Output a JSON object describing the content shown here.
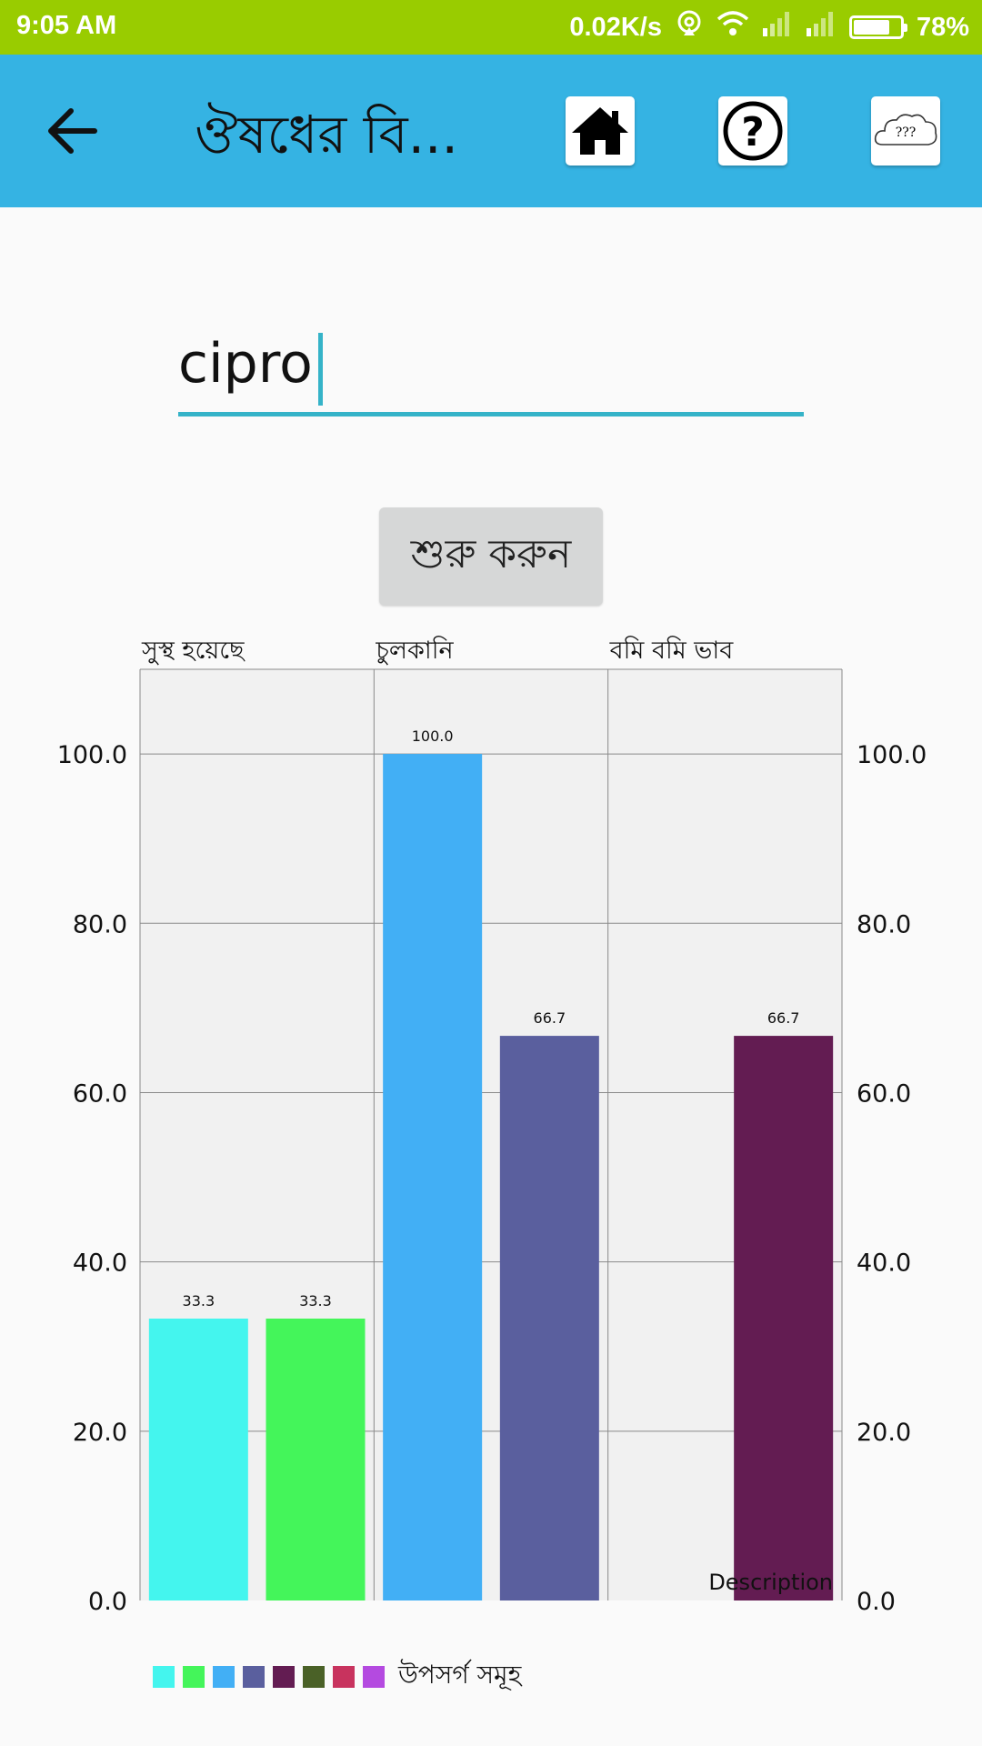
{
  "status_bar": {
    "time": "9:05 AM",
    "speed": "0.02K/s",
    "battery": "78%",
    "battery_level": 0.78
  },
  "app_bar": {
    "title": "ঔষধের বি...",
    "back_icon": "arrow-left-icon",
    "home_icon": "home-icon",
    "help_icon": "question-circle-icon",
    "cloud_icon": "cloud-icon",
    "cloud_text": "???"
  },
  "search": {
    "value": "cipro"
  },
  "start_button": {
    "label": "শুরু করুন"
  },
  "chart_data": {
    "type": "bar",
    "categories": [
      "সুস্থ হয়েছে",
      "চুলকানি",
      "বমি বমি ভাব"
    ],
    "bars": [
      {
        "category": 0,
        "slot": 0,
        "value": 33.3,
        "label": "33.3",
        "color": "#44f5ee"
      },
      {
        "category": 0,
        "slot": 1,
        "value": 33.3,
        "label": "33.3",
        "color": "#44f55a"
      },
      {
        "category": 1,
        "slot": 0,
        "value": 100.0,
        "label": "100.0",
        "color": "#42aff5"
      },
      {
        "category": 1,
        "slot": 1,
        "value": 66.7,
        "label": "66.7",
        "color": "#5a5f9e"
      },
      {
        "category": 2,
        "slot": 1,
        "value": 66.7,
        "label": "66.7",
        "color": "#631c52"
      }
    ],
    "y_ticks": [
      "0.0",
      "20.0",
      "40.0",
      "60.0",
      "80.0",
      "100.0"
    ],
    "ylim": [
      0,
      110
    ],
    "grid": true,
    "description": "Description",
    "legend": {
      "label": "উপসর্গ সমূহ",
      "placement": "bottom-left",
      "colors": [
        "#44f5ee",
        "#44f55a",
        "#42aff5",
        "#5a5f9e",
        "#631c52",
        "#4a6127",
        "#c8335e",
        "#b44ae0"
      ]
    }
  }
}
